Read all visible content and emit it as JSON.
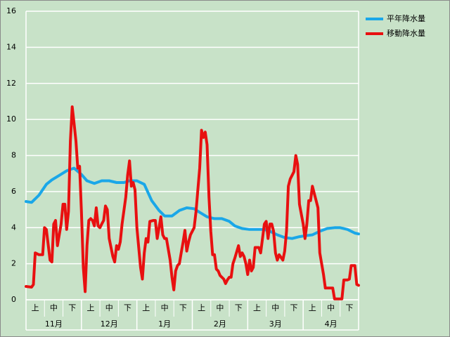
{
  "chart_data": {
    "type": "line",
    "categories": [
      "上",
      "中",
      "下",
      "上",
      "中",
      "下",
      "上",
      "中",
      "下",
      "上",
      "中",
      "下",
      "上",
      "中",
      "下",
      "上",
      "中",
      "下"
    ],
    "category_groups": [
      "11月",
      "12月",
      "1月",
      "2月",
      "3月",
      "4月"
    ],
    "xlim": [
      0,
      180
    ],
    "ylim": [
      0,
      16
    ],
    "yticks": [
      0,
      2,
      4,
      6,
      8,
      10,
      12,
      14,
      16
    ],
    "grid": true,
    "legend": "top-right",
    "series": [
      {
        "name": "平年降水量",
        "color": "#1aa7e8",
        "x": [
          0,
          3,
          7,
          11,
          14,
          18,
          22,
          26,
          30,
          33,
          37,
          41,
          45,
          49,
          53,
          56,
          60,
          64,
          68,
          72,
          75,
          79,
          83,
          87,
          91,
          94,
          98,
          102,
          106,
          110,
          113,
          117,
          121,
          125,
          129,
          132,
          136,
          140,
          144,
          148,
          151,
          155,
          159,
          163,
          167,
          170,
          174,
          178,
          180
        ],
        "values": [
          5.45,
          5.4,
          5.8,
          6.4,
          6.65,
          6.9,
          7.15,
          7.3,
          6.95,
          6.6,
          6.45,
          6.6,
          6.6,
          6.5,
          6.5,
          6.6,
          6.6,
          6.4,
          5.5,
          4.95,
          4.65,
          4.65,
          4.95,
          5.1,
          5.05,
          4.85,
          4.6,
          4.5,
          4.5,
          4.35,
          4.1,
          3.95,
          3.9,
          3.9,
          3.9,
          3.8,
          3.6,
          3.45,
          3.4,
          3.5,
          3.55,
          3.6,
          3.8,
          3.95,
          4.0,
          4.0,
          3.9,
          3.7,
          3.65
        ]
      },
      {
        "name": "移動降水量",
        "color": "#e81010",
        "x": [
          0,
          3,
          4,
          5,
          7,
          9,
          10,
          11,
          13,
          14,
          15,
          16,
          17,
          19,
          20,
          21,
          22,
          23,
          24,
          25,
          26,
          27,
          28,
          29,
          30,
          31,
          32,
          33,
          34,
          35,
          36,
          37,
          38,
          39,
          40,
          41,
          42,
          43,
          44,
          45,
          47,
          48,
          49,
          50,
          51,
          52,
          54,
          55,
          56,
          57,
          58,
          59,
          60,
          62,
          63,
          64,
          65,
          66,
          67,
          69,
          70,
          71,
          73,
          74,
          75,
          76,
          78,
          79,
          80,
          81,
          82,
          83,
          84,
          85,
          86,
          87,
          88,
          89,
          91,
          92,
          93,
          94,
          95,
          96,
          97,
          98,
          99,
          100,
          101,
          102,
          103,
          104,
          105,
          107,
          108,
          109,
          110,
          111,
          112,
          113,
          115,
          116,
          117,
          118,
          119,
          120,
          121,
          122,
          123,
          124,
          125,
          126,
          127,
          129,
          130,
          131,
          132,
          133,
          134,
          135,
          136,
          137,
          139,
          140,
          141,
          142,
          143,
          144,
          145,
          146,
          147,
          148,
          150,
          151,
          152,
          153,
          154,
          155,
          156,
          157,
          158,
          159,
          161,
          162,
          163,
          165,
          166,
          167,
          169,
          170,
          171,
          172,
          174,
          175,
          176,
          177,
          178,
          179,
          180
        ],
        "values": [
          0.74,
          0.7,
          0.85,
          2.6,
          2.5,
          2.5,
          4.0,
          3.9,
          2.2,
          2.1,
          4.2,
          4.4,
          3.0,
          4.2,
          5.3,
          5.3,
          3.9,
          4.9,
          8.8,
          10.7,
          9.8,
          8.8,
          7.3,
          7.4,
          4.9,
          1.8,
          0.45,
          3.0,
          4.4,
          4.5,
          4.4,
          4.1,
          5.1,
          4.1,
          4.0,
          4.2,
          4.4,
          5.2,
          5.0,
          3.4,
          2.4,
          2.1,
          3.0,
          2.8,
          3.2,
          4.2,
          5.7,
          6.9,
          7.7,
          6.3,
          6.5,
          6.1,
          4.0,
          1.8,
          1.15,
          2.6,
          3.4,
          3.2,
          4.35,
          4.4,
          4.4,
          3.4,
          4.6,
          3.6,
          3.4,
          3.4,
          2.2,
          1.25,
          0.55,
          1.6,
          1.9,
          2.0,
          2.6,
          3.2,
          3.85,
          2.7,
          3.2,
          3.6,
          4.0,
          4.9,
          6.1,
          7.3,
          9.4,
          9.0,
          9.3,
          8.6,
          5.7,
          3.8,
          2.5,
          2.5,
          1.7,
          1.6,
          1.35,
          1.15,
          0.9,
          1.1,
          1.25,
          1.25,
          2.0,
          2.3,
          3.0,
          2.4,
          2.6,
          2.4,
          2.0,
          1.4,
          2.2,
          1.6,
          1.8,
          2.9,
          2.9,
          2.9,
          2.6,
          4.2,
          4.35,
          3.4,
          4.2,
          4.2,
          3.8,
          2.6,
          2.2,
          2.5,
          2.2,
          2.7,
          3.8,
          6.3,
          6.7,
          6.9,
          7.1,
          8.0,
          7.5,
          5.3,
          4.2,
          3.4,
          4.2,
          5.5,
          5.5,
          6.3,
          5.9,
          5.5,
          5.1,
          2.6,
          1.4,
          0.65,
          0.65,
          0.65,
          0.65,
          0.05,
          0.05,
          0.05,
          0.05,
          1.1,
          1.1,
          1.15,
          1.9,
          1.9,
          1.9,
          0.85,
          0.8
        ]
      }
    ]
  }
}
